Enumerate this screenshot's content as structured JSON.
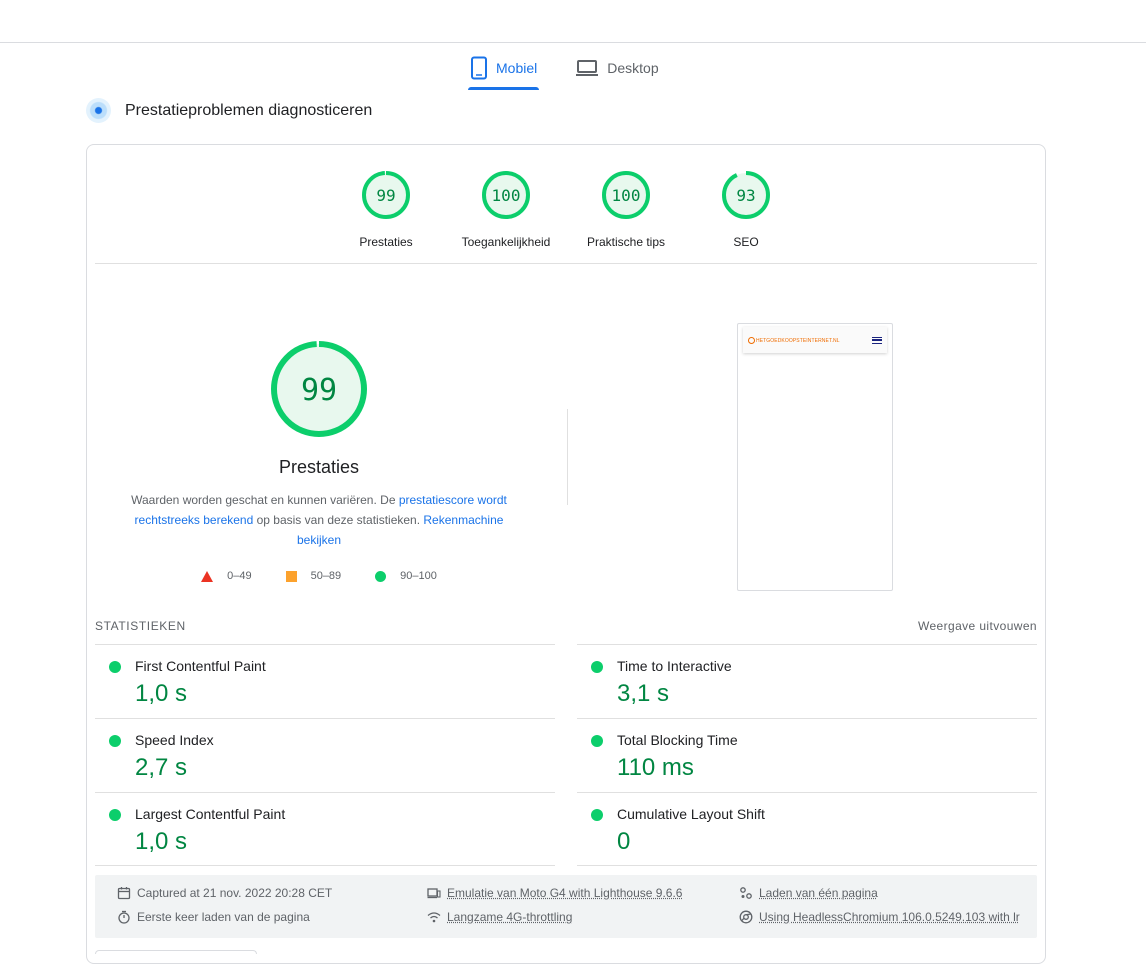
{
  "tabs": [
    {
      "label": "Mobiel",
      "icon": "smartphone-icon",
      "active": true
    },
    {
      "label": "Desktop",
      "icon": "laptop-icon",
      "active": false
    }
  ],
  "diagnose": {
    "title": "Prestatieproblemen diagnosticeren",
    "icon": "lighthouse-icon"
  },
  "gauges": [
    {
      "score": "99",
      "label": "Prestaties",
      "fraction": 0.99
    },
    {
      "score": "100",
      "label": "Toegankelijkheid",
      "fraction": 1.0
    },
    {
      "score": "100",
      "label": "Praktische tips",
      "fraction": 1.0
    },
    {
      "score": "93",
      "label": "SEO",
      "fraction": 0.93
    }
  ],
  "main_score": {
    "score": "99",
    "fraction": 0.99,
    "title": "Prestaties",
    "desc_prefix": "Waarden worden geschat en kunnen variëren. De ",
    "desc_link1": "prestatiescore wordt rechtstreeks berekend",
    "desc_middle": " op basis van deze statistieken. ",
    "desc_link2": "Rekenmachine bekijken"
  },
  "legend": [
    {
      "range": "0–49",
      "shape": "triangle",
      "color": "#eb3323"
    },
    {
      "range": "50–89",
      "shape": "square",
      "color": "#fca22d"
    },
    {
      "range": "90–100",
      "shape": "circle",
      "color": "#0cce6b"
    }
  ],
  "screenshot": {
    "site_logo": "HETGOEDKOOPSTEINTERNET.NL"
  },
  "stats": {
    "heading": "STATISTIEKEN",
    "toggle": "Weergave uitvouwen",
    "metrics": [
      {
        "name": "First Contentful Paint",
        "value": "1,0 s"
      },
      {
        "name": "Time to Interactive",
        "value": "3,1 s"
      },
      {
        "name": "Speed Index",
        "value": "2,7 s"
      },
      {
        "name": "Total Blocking Time",
        "value": "110 ms"
      },
      {
        "name": "Largest Contentful Paint",
        "value": "1,0 s"
      },
      {
        "name": "Cumulative Layout Shift",
        "value": "0"
      }
    ]
  },
  "runtime": {
    "captured": "Captured at 21 nov. 2022 20:28 CET",
    "first_load": "Eerste keer laden van de pagina",
    "emulation": "Emulatie van Moto G4 with Lighthouse 9.6.6",
    "throttling": "Langzame 4G-throttling",
    "single_page": "Laden van één pagina",
    "browser": "Using HeadlessChromium 106.0.5249.103 with lr"
  },
  "colors": {
    "pass": "#0cce6b",
    "pass_text": "#018642",
    "accent": "#1a73e8"
  }
}
